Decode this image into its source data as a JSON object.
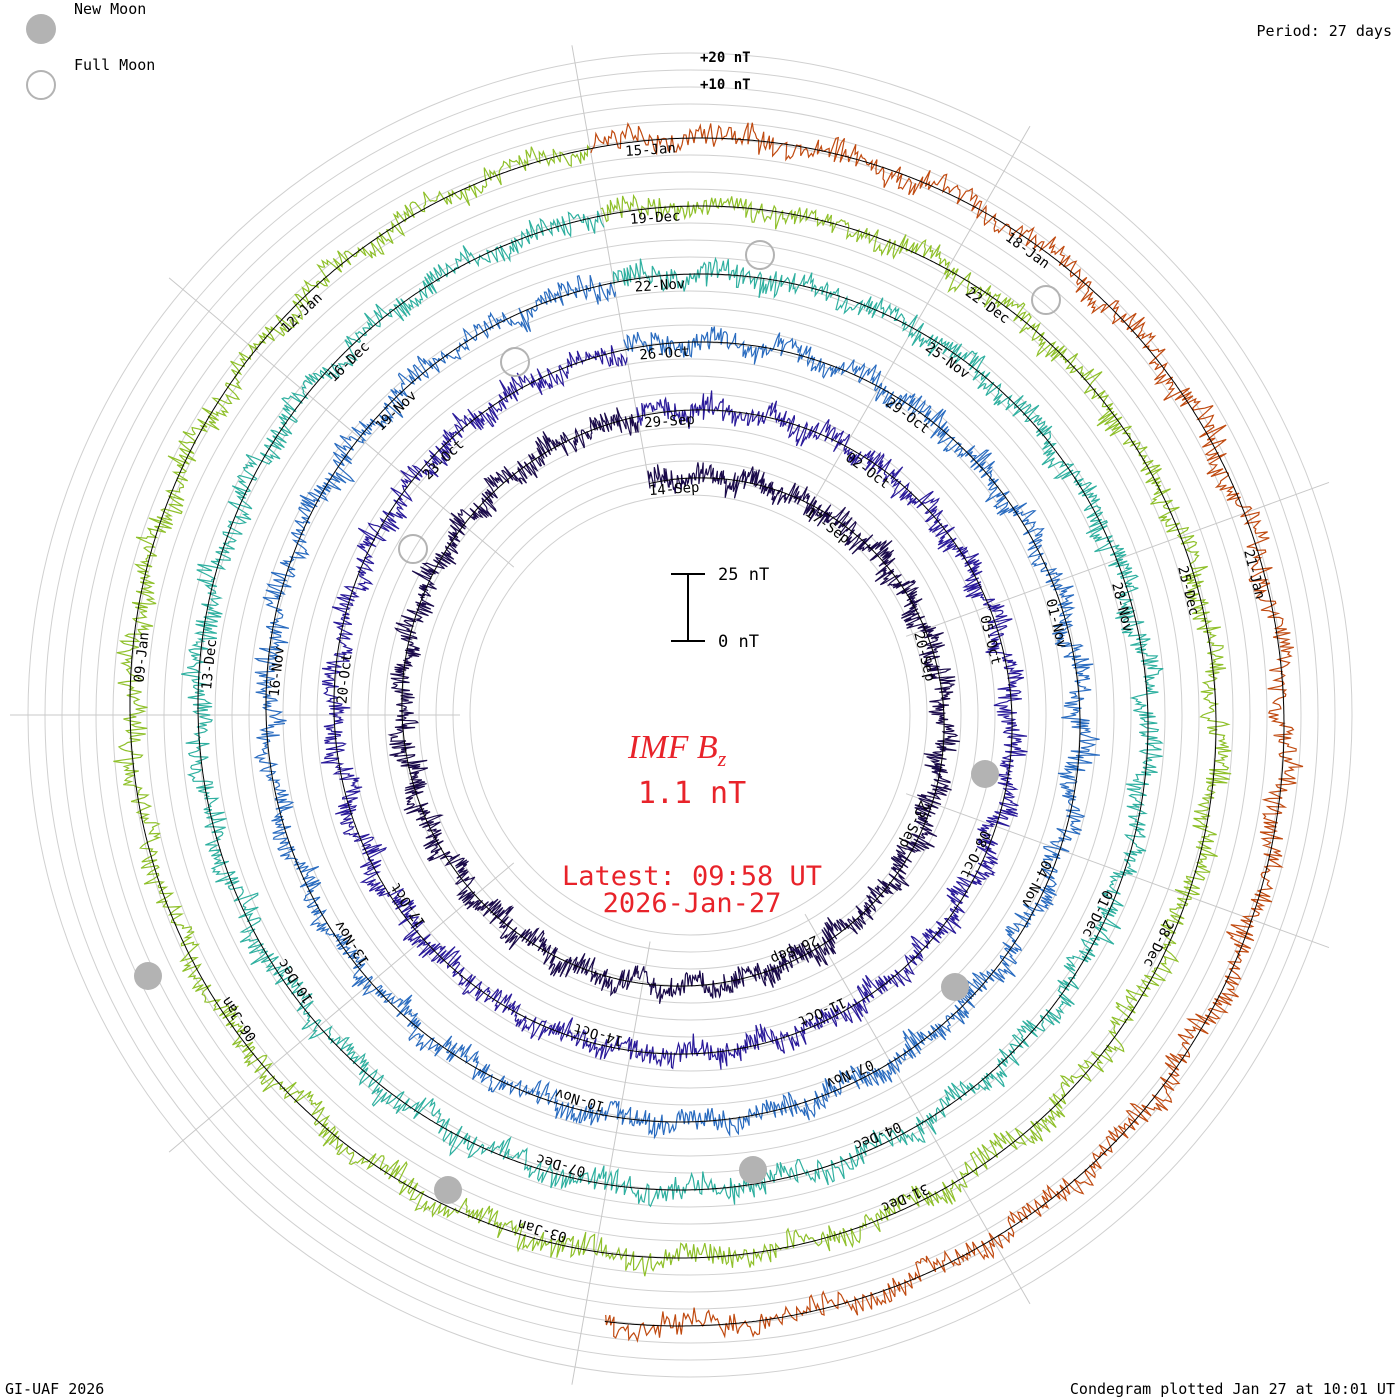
{
  "header": {
    "period_label": "Period: 27 days"
  },
  "legend": {
    "new_moon_label": "New Moon",
    "full_moon_label": "Full Moon",
    "new_moon_color": "#b3b3b3",
    "full_moon_color": "#b3b3b3"
  },
  "center": {
    "title": "IMF B",
    "title_sub": "z",
    "value": "1.1 nT",
    "latest_label": "Latest: 09:58 UT",
    "latest_date": "2026-Jan-27",
    "accent_color": "#e8232a",
    "scale_top_label": "25 nT",
    "scale_bottom_label": "0 nT"
  },
  "footer": {
    "credit": "GI-UAF 2026",
    "plotted": "Condegram plotted Jan 27 at 10:01 UT"
  },
  "chart_data": {
    "type": "line",
    "title": "IMF Bz",
    "subtitle": "1.1 nT",
    "period_days": 27,
    "ring_scale_labels": [
      "+20 nT",
      "+10 nT"
    ],
    "rings": [
      {
        "index": 0,
        "color": "#1a0a4a",
        "date_labels": [
          "14-Sep",
          "17-Sep",
          "20-Sep",
          "23-Sep",
          "26-Sep"
        ]
      },
      {
        "index": 1,
        "color": "#2a1a9a",
        "date_labels": [
          "29-Sep",
          "02-Oct",
          "05-Oct",
          "08-Oct",
          "11-Oct",
          "14-Oct",
          "17-Oct",
          "20-Oct",
          "23-Oct"
        ]
      },
      {
        "index": 2,
        "color": "#2a6cc0",
        "date_labels": [
          "26-Oct",
          "29-Oct",
          "01-Nov",
          "04-Nov",
          "07-Nov",
          "10-Nov",
          "13-Nov",
          "16-Nov",
          "19-Nov"
        ]
      },
      {
        "index": 3,
        "color": "#2fb0a0",
        "date_labels": [
          "22-Nov",
          "25-Nov",
          "28-Nov",
          "01-Dec",
          "04-Dec",
          "07-Dec",
          "10-Dec",
          "13-Dec",
          "16-Dec"
        ]
      },
      {
        "index": 4,
        "color": "#8fc02a",
        "date_labels": [
          "19-Dec",
          "22-Dec",
          "25-Dec",
          "28-Dec",
          "31-Dec",
          "03-Jan",
          "06-Jan",
          "09-Jan",
          "12-Jan"
        ]
      },
      {
        "index": 5,
        "color": "#c04a10",
        "date_labels": [
          "15-Jan",
          "18-Jan",
          "21-Jan"
        ]
      }
    ],
    "latest_value_nT": 1.1,
    "grid": true
  }
}
